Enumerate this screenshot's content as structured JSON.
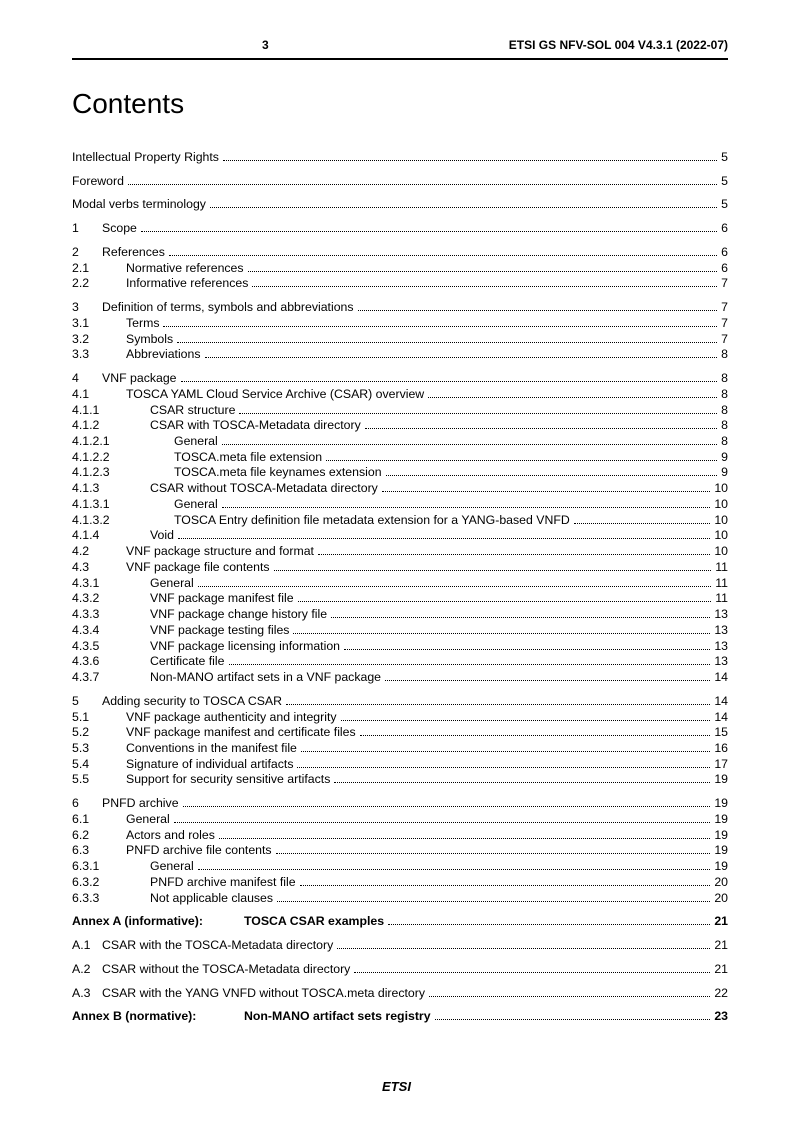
{
  "header": {
    "pageNumber": "3",
    "docId": "ETSI GS NFV-SOL 004 V4.3.1 (2022-07)"
  },
  "title": "Contents",
  "footer": "ETSI",
  "toc": [
    {
      "gapBefore": false,
      "num": "",
      "indentClass": "",
      "title": "Intellectual Property Rights",
      "page": "5"
    },
    {
      "gapBefore": true,
      "num": "",
      "indentClass": "",
      "title": "Foreword",
      "page": "5"
    },
    {
      "gapBefore": true,
      "num": "",
      "indentClass": "",
      "title": "Modal verbs terminology",
      "page": "5"
    },
    {
      "gapBefore": true,
      "num": "1",
      "indentClass": "w0",
      "title": "Scope",
      "page": "6"
    },
    {
      "gapBefore": true,
      "num": "2",
      "indentClass": "w0",
      "title": "References",
      "page": "6"
    },
    {
      "gapBefore": false,
      "num": "2.1",
      "indentClass": "w1",
      "title": "Normative references",
      "page": "6"
    },
    {
      "gapBefore": false,
      "num": "2.2",
      "indentClass": "w1",
      "title": "Informative references",
      "page": "7"
    },
    {
      "gapBefore": true,
      "num": "3",
      "indentClass": "w0",
      "title": "Definition of terms, symbols and abbreviations",
      "page": "7"
    },
    {
      "gapBefore": false,
      "num": "3.1",
      "indentClass": "w1",
      "title": "Terms",
      "page": "7"
    },
    {
      "gapBefore": false,
      "num": "3.2",
      "indentClass": "w1",
      "title": "Symbols",
      "page": "7"
    },
    {
      "gapBefore": false,
      "num": "3.3",
      "indentClass": "w1",
      "title": "Abbreviations",
      "page": "8"
    },
    {
      "gapBefore": true,
      "num": "4",
      "indentClass": "w0",
      "title": "VNF package",
      "page": "8"
    },
    {
      "gapBefore": false,
      "num": "4.1",
      "indentClass": "w1",
      "title": "TOSCA YAML Cloud Service Archive (CSAR) overview",
      "page": "8"
    },
    {
      "gapBefore": false,
      "num": "4.1.1",
      "indentClass": "w2",
      "title": "CSAR structure",
      "page": "8"
    },
    {
      "gapBefore": false,
      "num": "4.1.2",
      "indentClass": "w2",
      "title": "CSAR with TOSCA-Metadata directory",
      "page": "8"
    },
    {
      "gapBefore": false,
      "num": "4.1.2.1",
      "indentClass": "w3",
      "title": "General",
      "page": "8"
    },
    {
      "gapBefore": false,
      "num": "4.1.2.2",
      "indentClass": "w3",
      "title": "TOSCA.meta file extension",
      "page": "9"
    },
    {
      "gapBefore": false,
      "num": "4.1.2.3",
      "indentClass": "w3",
      "title": "TOSCA.meta file keynames extension",
      "page": "9"
    },
    {
      "gapBefore": false,
      "num": "4.1.3",
      "indentClass": "w2",
      "title": "CSAR without TOSCA-Metadata directory",
      "page": "10"
    },
    {
      "gapBefore": false,
      "num": "4.1.3.1",
      "indentClass": "w3",
      "title": "General",
      "page": "10"
    },
    {
      "gapBefore": false,
      "num": "4.1.3.2",
      "indentClass": "w3",
      "title": "TOSCA Entry definition file metadata extension for a YANG-based VNFD",
      "page": "10"
    },
    {
      "gapBefore": false,
      "num": "4.1.4",
      "indentClass": "w2",
      "title": "Void",
      "page": "10"
    },
    {
      "gapBefore": false,
      "num": "4.2",
      "indentClass": "w1",
      "title": "VNF package structure and format",
      "page": "10"
    },
    {
      "gapBefore": false,
      "num": "4.3",
      "indentClass": "w1",
      "title": "VNF package file contents",
      "page": "11"
    },
    {
      "gapBefore": false,
      "num": "4.3.1",
      "indentClass": "w2",
      "title": "General",
      "page": "11"
    },
    {
      "gapBefore": false,
      "num": "4.3.2",
      "indentClass": "w2",
      "title": "VNF package manifest file",
      "page": "11"
    },
    {
      "gapBefore": false,
      "num": "4.3.3",
      "indentClass": "w2",
      "title": "VNF package change history file",
      "page": "13"
    },
    {
      "gapBefore": false,
      "num": "4.3.4",
      "indentClass": "w2",
      "title": "VNF package testing files",
      "page": "13"
    },
    {
      "gapBefore": false,
      "num": "4.3.5",
      "indentClass": "w2",
      "title": "VNF package licensing information",
      "page": "13"
    },
    {
      "gapBefore": false,
      "num": "4.3.6",
      "indentClass": "w2",
      "title": "Certificate file",
      "page": "13"
    },
    {
      "gapBefore": false,
      "num": "4.3.7",
      "indentClass": "w2",
      "title": "Non-MANO artifact sets in a VNF package",
      "page": "14"
    },
    {
      "gapBefore": true,
      "num": "5",
      "indentClass": "w0",
      "title": "Adding security to TOSCA CSAR",
      "page": "14"
    },
    {
      "gapBefore": false,
      "num": "5.1",
      "indentClass": "w1",
      "title": "VNF package authenticity and integrity",
      "page": "14"
    },
    {
      "gapBefore": false,
      "num": "5.2",
      "indentClass": "w1",
      "title": "VNF package manifest and certificate files",
      "page": "15"
    },
    {
      "gapBefore": false,
      "num": "5.3",
      "indentClass": "w1",
      "title": "Conventions in the manifest file",
      "page": "16"
    },
    {
      "gapBefore": false,
      "num": "5.4",
      "indentClass": "w1",
      "title": "Signature of individual artifacts",
      "page": "17"
    },
    {
      "gapBefore": false,
      "num": "5.5",
      "indentClass": "w1",
      "title": "Support for security sensitive artifacts",
      "page": "19"
    },
    {
      "gapBefore": true,
      "num": "6",
      "indentClass": "w0",
      "title": "PNFD archive",
      "page": "19"
    },
    {
      "gapBefore": false,
      "num": "6.1",
      "indentClass": "w1",
      "title": "General",
      "page": "19"
    },
    {
      "gapBefore": false,
      "num": "6.2",
      "indentClass": "w1",
      "title": "Actors and roles",
      "page": "19"
    },
    {
      "gapBefore": false,
      "num": "6.3",
      "indentClass": "w1",
      "title": "PNFD archive file contents",
      "page": "19"
    },
    {
      "gapBefore": false,
      "num": "6.3.1",
      "indentClass": "w2",
      "title": "General",
      "page": "19"
    },
    {
      "gapBefore": false,
      "num": "6.3.2",
      "indentClass": "w2",
      "title": "PNFD archive manifest file",
      "page": "20"
    },
    {
      "gapBefore": false,
      "num": "6.3.3",
      "indentClass": "w2",
      "title": "Not applicable clauses",
      "page": "20"
    },
    {
      "gapBefore": true,
      "bold": true,
      "annex": true,
      "num": "Annex A (informative):",
      "indentClass": "annex-title",
      "title": "TOSCA CSAR examples",
      "page": "21"
    },
    {
      "gapBefore": true,
      "num": "A.1",
      "indentClass": "w0",
      "title": "CSAR with the TOSCA-Metadata directory",
      "page": "21"
    },
    {
      "gapBefore": true,
      "num": "A.2",
      "indentClass": "w0",
      "title": "CSAR without the TOSCA-Metadata directory",
      "page": "21"
    },
    {
      "gapBefore": true,
      "num": "A.3",
      "indentClass": "w0",
      "title": "CSAR with the YANG VNFD without TOSCA.meta directory",
      "page": "22"
    },
    {
      "gapBefore": true,
      "bold": true,
      "annex": true,
      "num": "Annex B (normative):",
      "indentClass": "annex-title",
      "title": "Non-MANO artifact sets registry",
      "page": "23"
    }
  ]
}
